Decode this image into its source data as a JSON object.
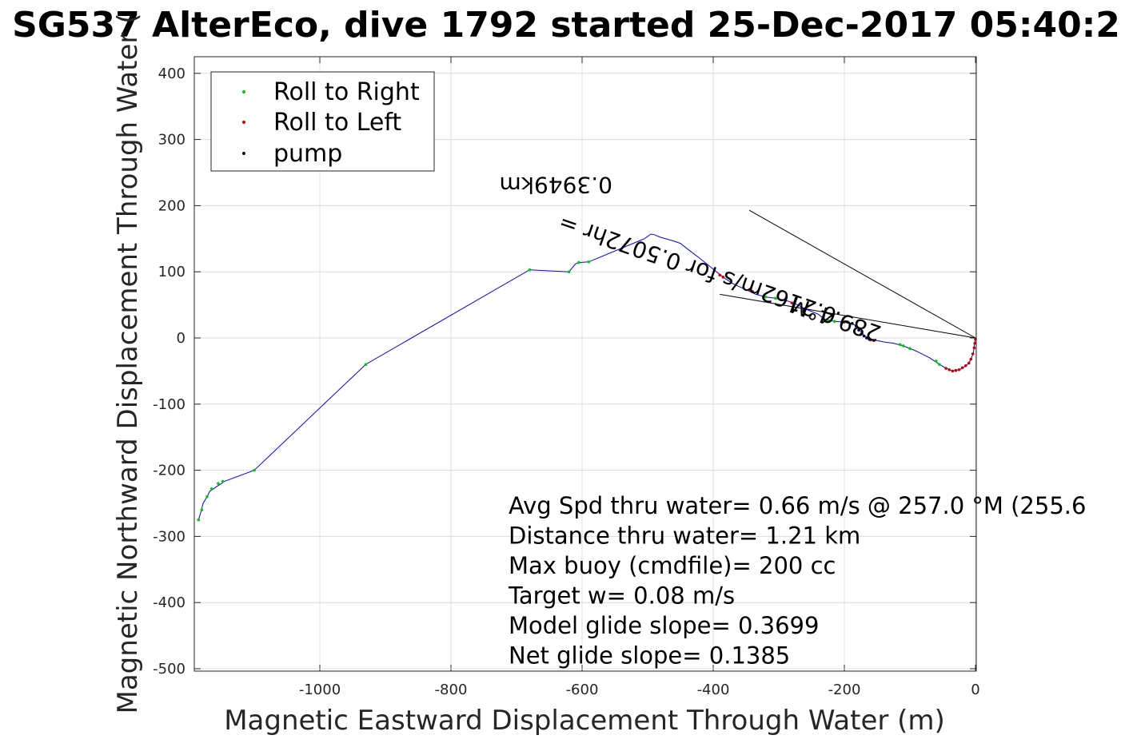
{
  "chart_data": {
    "type": "line",
    "title": "SG537 AlterEco, dive 1792 started 25-Dec-2017 05:40:2",
    "xlabel": "Magnetic Eastward Displacement Through Water (m)",
    "ylabel": "Magnetic Northward Displacement Through Water (",
    "xlim": [
      -1185,
      0
    ],
    "ylim": [
      -500,
      425
    ],
    "xticks": [
      -1000,
      -800,
      -600,
      -400,
      -200,
      0
    ],
    "yticks": [
      400,
      300,
      200,
      100,
      0,
      -100,
      -200,
      -300,
      -400,
      -500
    ],
    "grid": true,
    "legend_position": "top-left",
    "legend": [
      {
        "label": "Roll to Right",
        "color": "#00cc00"
      },
      {
        "label": "Roll to Left",
        "color": "#cc0000"
      },
      {
        "label": "pump",
        "color": "#000033"
      }
    ],
    "series": [
      {
        "name": "track",
        "color": "#0000ff",
        "x": [
          -1185,
          -1182,
          -1178,
          -1172,
          -1168,
          -1162,
          -1158,
          -1150,
          -1146,
          -1100,
          -930,
          -680,
          -620,
          -610,
          -605,
          -590,
          -510,
          -505,
          -495,
          -490,
          -480,
          -465,
          -450,
          -440,
          -420,
          -400,
          -385,
          -370,
          -350,
          -335,
          -320,
          -305,
          -290,
          -275,
          -260,
          -240,
          -230,
          -215,
          -200,
          -190,
          -180,
          -175,
          -170,
          -165,
          -160,
          -150,
          -140,
          -125,
          -110,
          -90,
          -70,
          -55,
          -45,
          -40,
          -35,
          -30,
          -22,
          -15,
          -10,
          -6,
          -3,
          -2,
          -1,
          0
        ],
        "y": [
          -275,
          -265,
          -250,
          -240,
          -232,
          -228,
          -225,
          -220,
          -217,
          -200,
          -40,
          103,
          100,
          112,
          114,
          115,
          148,
          150,
          157,
          156,
          152,
          148,
          143,
          135,
          120,
          104,
          92,
          82,
          73,
          66,
          62,
          60,
          57,
          52,
          44,
          36,
          28,
          25,
          24,
          22,
          18,
          10,
          4,
          0,
          -3,
          -4,
          -6,
          -8,
          -12,
          -20,
          -30,
          -40,
          -46,
          -48,
          -50,
          -49,
          -47,
          -42,
          -38,
          -30,
          -22,
          -12,
          -5,
          0
        ],
        "roll_right_points": [
          [
            -1185,
            -275
          ],
          [
            -1180,
            -260
          ],
          [
            -1172,
            -240
          ],
          [
            -1165,
            -228
          ],
          [
            -1155,
            -220
          ],
          [
            -1148,
            -217
          ],
          [
            -1100,
            -200
          ],
          [
            -930,
            -40
          ],
          [
            -680,
            103
          ],
          [
            -620,
            100
          ],
          [
            -605,
            114
          ],
          [
            -590,
            115
          ],
          [
            -320,
            62
          ],
          [
            -305,
            60
          ],
          [
            -225,
            26
          ],
          [
            -215,
            25
          ],
          [
            -115,
            -10
          ],
          [
            -110,
            -12
          ],
          [
            -100,
            -16
          ],
          [
            -60,
            -35
          ],
          [
            -55,
            -40
          ]
        ],
        "roll_left_points": [
          [
            -390,
            95
          ],
          [
            -385,
            92
          ],
          [
            -345,
            73
          ],
          [
            -340,
            70
          ],
          [
            -290,
            57
          ],
          [
            -280,
            53
          ],
          [
            -200,
            24
          ],
          [
            -160,
            -3
          ],
          [
            -155,
            -4
          ],
          [
            -45,
            -46
          ],
          [
            -40,
            -48
          ],
          [
            -35,
            -50
          ],
          [
            -30,
            -49
          ],
          [
            -25,
            -48
          ],
          [
            -20,
            -45
          ],
          [
            -15,
            -42
          ],
          [
            -10,
            -38
          ],
          [
            -7,
            -32
          ],
          [
            -4,
            -24
          ],
          [
            -2,
            -15
          ],
          [
            -1,
            -8
          ],
          [
            0,
            -2
          ]
        ],
        "pump_points": [
          [
            -195,
            24
          ],
          [
            -188,
            22
          ],
          [
            -182,
            18
          ],
          [
            -178,
            12
          ],
          [
            -174,
            6
          ],
          [
            -170,
            3
          ],
          [
            -166,
            0
          ],
          [
            -162,
            -2
          ]
        ]
      }
    ],
    "reference_lines": [
      {
        "x": [
          0,
          -345
        ],
        "y": [
          0,
          193
        ]
      },
      {
        "x": [
          0,
          -390
        ],
        "y": [
          0,
          66
        ]
      }
    ],
    "rotated_labels": [
      {
        "text": "0.3949km",
        "cx": -640,
        "cy": 243,
        "angle": 180
      },
      {
        "text": "0.2162m/s for 0.5072hr =",
        "cx": -420,
        "cy": 115,
        "angle": 199
      },
      {
        "text": "289.4°M",
        "cx": -210,
        "cy": 40,
        "angle": 199
      }
    ],
    "annotations": [
      "Avg Spd thru water=  0.66 m/s @ 257.0 °M (255.6",
      "Distance thru water=  1.21 km",
      "Max buoy (cmdfile)= 200 cc",
      "Target w= 0.08 m/s",
      "Model glide slope= 0.3699",
      "Net glide slope= 0.1385"
    ]
  }
}
